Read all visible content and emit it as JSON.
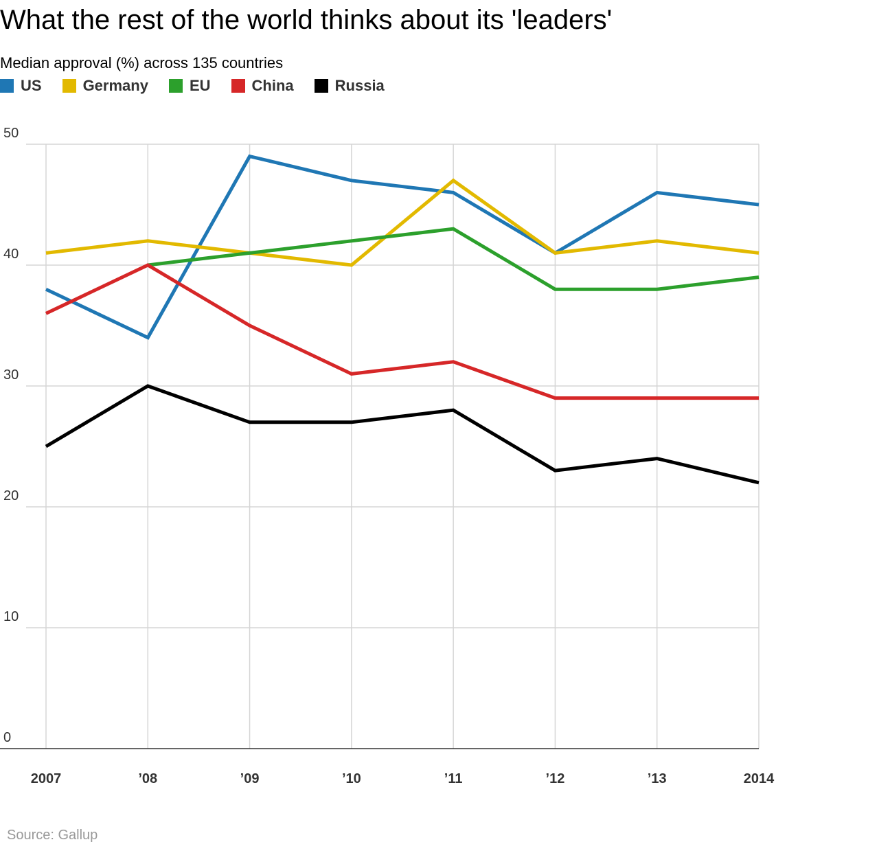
{
  "title": "What the rest of the world thinks about its 'leaders'",
  "subtitle": "Median approval (%) across 135 countries",
  "source": "Source: Gallup",
  "chart_data": {
    "type": "line",
    "title": "What the rest of the world thinks about its 'leaders'",
    "subtitle": "Median approval (%) across 135 countries",
    "categories": [
      "2007",
      "’08",
      "’09",
      "’10",
      "’11",
      "’12",
      "’13",
      "2014"
    ],
    "ylim": [
      0,
      50
    ],
    "yticks": [
      "0",
      "10",
      "20",
      "30",
      "40",
      "50"
    ],
    "grid": true,
    "legend_position": "top-left",
    "series": [
      {
        "name": "US",
        "color": "#1f77b4",
        "values": [
          38,
          34,
          49,
          47,
          46,
          41,
          46,
          45
        ]
      },
      {
        "name": "Germany",
        "color": "#e2b900",
        "values": [
          41,
          42,
          41,
          40,
          47,
          41,
          42,
          41
        ]
      },
      {
        "name": "EU",
        "color": "#2ca02c",
        "values": [
          null,
          40,
          41,
          42,
          43,
          38,
          38,
          39
        ]
      },
      {
        "name": "China",
        "color": "#d62728",
        "values": [
          36,
          40,
          35,
          31,
          32,
          29,
          29,
          29
        ]
      },
      {
        "name": "Russia",
        "color": "#000000",
        "values": [
          25,
          30,
          27,
          27,
          28,
          23,
          24,
          22
        ]
      }
    ]
  }
}
